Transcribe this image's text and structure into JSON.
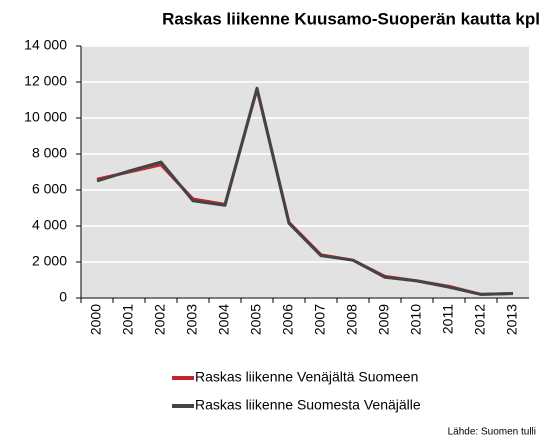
{
  "chart_data": {
    "type": "line",
    "title": "Raskas liikenne Kuusamo-Suoperän kautta kpl",
    "categories": [
      "2000",
      "2001",
      "2002",
      "2003",
      "2004",
      "2005",
      "2006",
      "2007",
      "2008",
      "2009",
      "2010",
      "2011",
      "2012",
      "2013"
    ],
    "series": [
      {
        "name": "Raskas liikenne Venäjältä Suomeen",
        "color": "#c0272d",
        "values": [
          6600,
          7000,
          7400,
          5500,
          5200,
          11600,
          4200,
          2400,
          2100,
          1200,
          950,
          650,
          200,
          250
        ]
      },
      {
        "name": "Raskas liikenne Suomesta Venäjälle",
        "color": "#444444",
        "values": [
          6500,
          7050,
          7550,
          5400,
          5150,
          11650,
          4150,
          2350,
          2100,
          1150,
          950,
          600,
          200,
          250
        ]
      }
    ],
    "ylim": [
      0,
      14000
    ],
    "yticks": [
      0,
      {
        "value": 2000,
        "label": "2 000"
      },
      {
        "value": 4000,
        "label": "4 000"
      },
      {
        "value": 6000,
        "label": "6 000"
      },
      {
        "value": 8000,
        "label": "8 000"
      },
      {
        "value": 10000,
        "label": "10 000"
      },
      {
        "value": 12000,
        "label": "12 000"
      },
      {
        "value": 14000,
        "label": "14 000"
      }
    ],
    "grid": true,
    "source": "Lähde: Suomen tulli"
  }
}
